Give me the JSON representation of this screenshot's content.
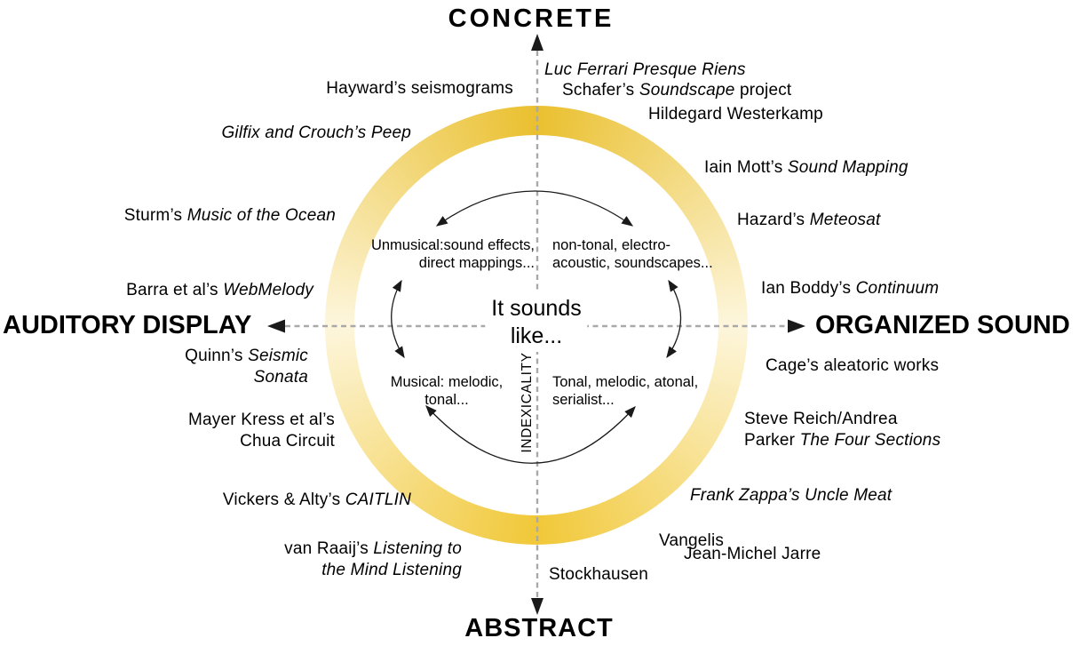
{
  "diagram": {
    "axes": {
      "top": "CONCRETE",
      "bottom": "ABSTRACT",
      "left": "AUDITORY DISPLAY",
      "right": "ORGANIZED SOUND"
    },
    "vertical_axis_label": "INDEXICALITY",
    "center": {
      "line1": "It sounds",
      "line2": "like..."
    },
    "quadrant_descriptions": {
      "top_left": {
        "line1": "Unmusical:sound effects,",
        "line2": "direct mappings..."
      },
      "top_right": {
        "line1": "non-tonal, electro-",
        "line2": "acoustic, soundscapes..."
      },
      "bottom_left": {
        "line1": "Musical: melodic,",
        "line2": "tonal..."
      },
      "bottom_right": {
        "line1": "Tonal, melodic, atonal,",
        "line2": "serialist..."
      }
    },
    "examples": {
      "hayward": {
        "lines": [
          [
            {
              "t": "Hayward’s seismograms"
            }
          ]
        ]
      },
      "luc_ferrari": {
        "lines": [
          [
            {
              "t": "Luc Ferrari Presque Riens",
              "i": true
            }
          ]
        ]
      },
      "schafer": {
        "lines": [
          [
            {
              "t": "Schafer’s "
            },
            {
              "t": "Soundscape",
              "i": true
            },
            {
              "t": " project"
            }
          ]
        ]
      },
      "westerkamp": {
        "lines": [
          [
            {
              "t": "Hildegard Westerkamp"
            }
          ]
        ]
      },
      "gilfix": {
        "lines": [
          [
            {
              "t": "Gilfix and Crouch’s Peep",
              "i": true
            }
          ]
        ]
      },
      "mott": {
        "lines": [
          [
            {
              "t": "Iain Mott’s "
            },
            {
              "t": "Sound Mapping",
              "i": true
            }
          ]
        ]
      },
      "sturm": {
        "lines": [
          [
            {
              "t": "Sturm’s "
            },
            {
              "t": "Music of the Ocean",
              "i": true
            }
          ]
        ]
      },
      "hazard": {
        "lines": [
          [
            {
              "t": "Hazard’s "
            },
            {
              "t": "Meteosat",
              "i": true
            }
          ]
        ]
      },
      "barra": {
        "lines": [
          [
            {
              "t": "Barra et al’s "
            },
            {
              "t": "WebMelody",
              "i": true
            }
          ]
        ]
      },
      "boddy": {
        "lines": [
          [
            {
              "t": "Ian Boddy’s "
            },
            {
              "t": "Continuum",
              "i": true
            }
          ]
        ]
      },
      "quinn": {
        "lines": [
          [
            {
              "t": "Quinn’s "
            },
            {
              "t": "Seismic",
              "i": true
            }
          ],
          [
            {
              "t": "Sonata",
              "i": true
            }
          ]
        ]
      },
      "cage": {
        "lines": [
          [
            {
              "t": "Cage’s aleatoric works"
            }
          ]
        ]
      },
      "mayer_kress": {
        "lines": [
          [
            {
              "t": "Mayer Kress et al’s"
            }
          ],
          [
            {
              "t": "Chua Circuit"
            }
          ]
        ]
      },
      "reich_parker": {
        "lines": [
          [
            {
              "t": "Steve Reich/Andrea"
            }
          ],
          [
            {
              "t": "Parker "
            },
            {
              "t": "The Four Sections",
              "i": true
            }
          ]
        ]
      },
      "vickers": {
        "lines": [
          [
            {
              "t": "Vickers & Alty’s "
            },
            {
              "t": "CAITLIN",
              "i": true
            }
          ]
        ]
      },
      "zappa": {
        "lines": [
          [
            {
              "t": "Frank Zappa’s Uncle Meat",
              "i": true
            }
          ]
        ]
      },
      "vangelis": {
        "lines": [
          [
            {
              "t": "Vangelis"
            }
          ]
        ]
      },
      "jarre": {
        "lines": [
          [
            {
              "t": "Jean-Michel Jarre"
            }
          ]
        ]
      },
      "stockhausen": {
        "lines": [
          [
            {
              "t": "Stockhausen"
            }
          ]
        ]
      },
      "van_raaij": {
        "lines": [
          [
            {
              "t": "van Raaij’s "
            },
            {
              "t": "Listening to",
              "i": true
            }
          ],
          [
            {
              "t": "the Mind Listening",
              "i": true
            }
          ]
        ]
      }
    },
    "colors": {
      "ring_gold": "#EAC02F",
      "ring_gold2": "#F1C838",
      "ring_pale": "#FDF6DC",
      "axis_gray": "#A9A9A9",
      "arrow_black": "#1A1A1A"
    }
  }
}
